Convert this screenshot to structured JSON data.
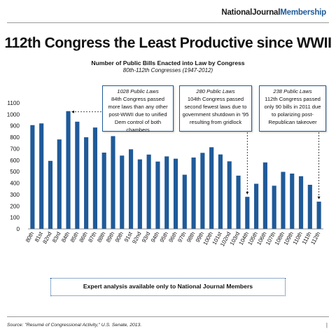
{
  "brand": {
    "part1": "NationalJournal",
    "part2": "Membership"
  },
  "chart_data": {
    "type": "bar",
    "title": "112th Congress the Least Productive since WWII",
    "subtitle": "Number of Public Bills Enacted into Law by Congress",
    "subtitle2": "80th-112th Congresses (1947-2012)",
    "categories": [
      "80th",
      "81st",
      "82nd",
      "83rd",
      "84th",
      "85th",
      "86th",
      "87th",
      "88th",
      "89th",
      "90th",
      "91st",
      "92nd",
      "93rd",
      "94th",
      "95th",
      "96th",
      "97th",
      "98th",
      "99th",
      "100th",
      "101st",
      "102nd",
      "103rd",
      "104th",
      "105th",
      "106th",
      "107th",
      "108th",
      "109th",
      "110th",
      "111th",
      "112th"
    ],
    "values": [
      906,
      921,
      594,
      781,
      1028,
      936,
      800,
      885,
      666,
      810,
      640,
      695,
      607,
      649,
      588,
      633,
      613,
      473,
      623,
      664,
      713,
      650,
      590,
      465,
      280,
      394,
      580,
      377,
      498,
      483,
      460,
      385,
      238
    ],
    "ylim": [
      0,
      1100
    ],
    "yticks": [
      0,
      100,
      200,
      300,
      400,
      500,
      600,
      700,
      800,
      900,
      1000,
      1100
    ],
    "bar_color": "#1f5a99",
    "grid": false,
    "annotations": [
      {
        "title": "1028 Public Laws",
        "text": "84th Congress passed more laws than any other post-WWII due to unified Dem control of both chambers"
      },
      {
        "title": "280 Public Laws",
        "text": "104th Congress passed second fewest laws due to government shutdown in '95 resulting from gridlock"
      },
      {
        "title": "238 Public Laws",
        "text": "112th Congress passed only 90 bills in 2011 due to polarizing post-Republican takeover"
      }
    ]
  },
  "cta": "Expert analysis available only to National Journal Members",
  "source": "Source: \"Resumé of Congressional Activity,\" U.S. Senate, 2013.",
  "page_marker": "|"
}
